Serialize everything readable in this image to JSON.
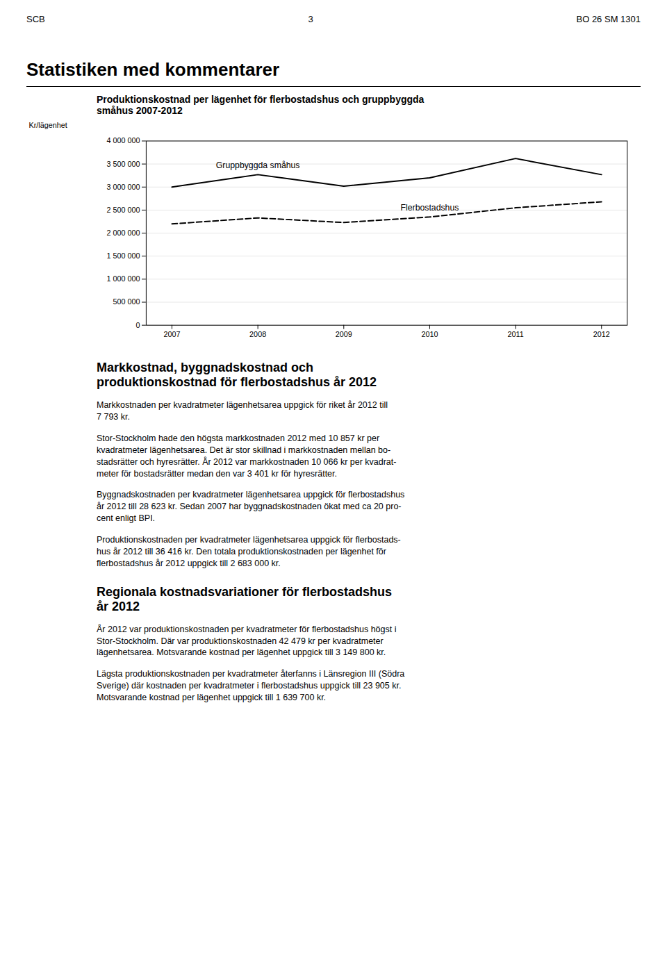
{
  "page_header": [
    "SCB",
    "3",
    "BO 26 SM 1301"
  ],
  "section_title": "Statistiken med kommentarer",
  "chart_data": {
    "type": "line",
    "title": "Produktionskostnad per lägenhet för flerbostadshus och gruppbyggda\nsmåhus 2007-2012",
    "ylabel": "Kr/lägenhet",
    "x": [
      2007,
      2008,
      2009,
      2010,
      2011,
      2012
    ],
    "series": [
      {
        "name": "Gruppbyggda småhus",
        "color": "#000000",
        "line_style": "solid",
        "values": [
          3000000,
          3270000,
          3020000,
          3200000,
          3620000,
          3270000
        ]
      },
      {
        "name": "Flerbostadshus",
        "color": "#000000",
        "line_style": "dashed",
        "values": [
          2200000,
          2330000,
          2230000,
          2350000,
          2550000,
          2680000
        ]
      }
    ],
    "xlim": [
      2006.7,
      2012.3
    ],
    "xticks": [
      2007,
      2008,
      2009,
      2010,
      2011,
      2012
    ],
    "ylim": [
      0,
      4000000
    ],
    "yticks": [
      0,
      {
        "value": 500000,
        "label": "500 000"
      },
      {
        "value": 1000000,
        "label": "1 000 000"
      },
      {
        "value": 1500000,
        "label": "1 500 000"
      },
      {
        "value": 2000000,
        "label": "2 000 000"
      },
      {
        "value": 2500000,
        "label": "2 500 000"
      },
      {
        "value": 3000000,
        "label": "3 000 000"
      },
      {
        "value": 3500000,
        "label": "3 500 000"
      },
      {
        "value": 4000000,
        "label": "4 000 000"
      }
    ],
    "grid": true
  },
  "sections": [
    {
      "title": "Markkostnad, byggnadskostnad och\nproduktionskostnad för flerbostadshus år 2012",
      "paragraphs": [
        "Markkostnaden per kvadratmeter lägenhetsarea uppgick för riket år 2012 till\n7 793 kr.",
        "Stor-Stockholm hade den högsta markkostnaden 2012 med 10 857 kr per\nkvadratmeter lägenhetsarea. Det är stor skillnad i markkostnaden mellan bo-\nstadsrätter och hyresrätter. År 2012 var markkostnaden 10 066 kr per kvadrat-\nmeter för bostadsrätter medan den var 3 401 kr för hyresrätter.",
        "Byggnadskostnaden per kvadratmeter lägenhetsarea uppgick för flerbostadshus\når 2012 till 28 623 kr. Sedan 2007 har byggnadskostnaden ökat med ca 20 pro-\ncent enligt BPI.",
        "Produktionskostnaden per kvadratmeter lägenhetsarea uppgick för flerbostads-\nhus år 2012 till 36 416 kr. Den totala produktionskostnaden per lägenhet för\nflerbostadshus år 2012 uppgick till  2 683 000 kr."
      ]
    },
    {
      "title": "Regionala kostnadsvariationer för flerbostadshus\når 2012",
      "paragraphs": [
        "År 2012 var produktionskostnaden per kvadratmeter för flerbostadshus högst i\nStor-Stockholm. Där var produktionskostnaden 42 479 kr per kvadratmeter\nlägenhetsarea. Motsvarande kostnad per lägenhet uppgick till 3 149 800 kr.",
        "Lägsta produktionskostnaden per kvadratmeter återfanns i Länsregion III (Södra\nSverige) där kostnaden per kvadratmeter i flerbostadshus uppgick till 23 905 kr.\nMotsvarande kostnad per lägenhet uppgick till 1 639 700 kr."
      ]
    }
  ]
}
